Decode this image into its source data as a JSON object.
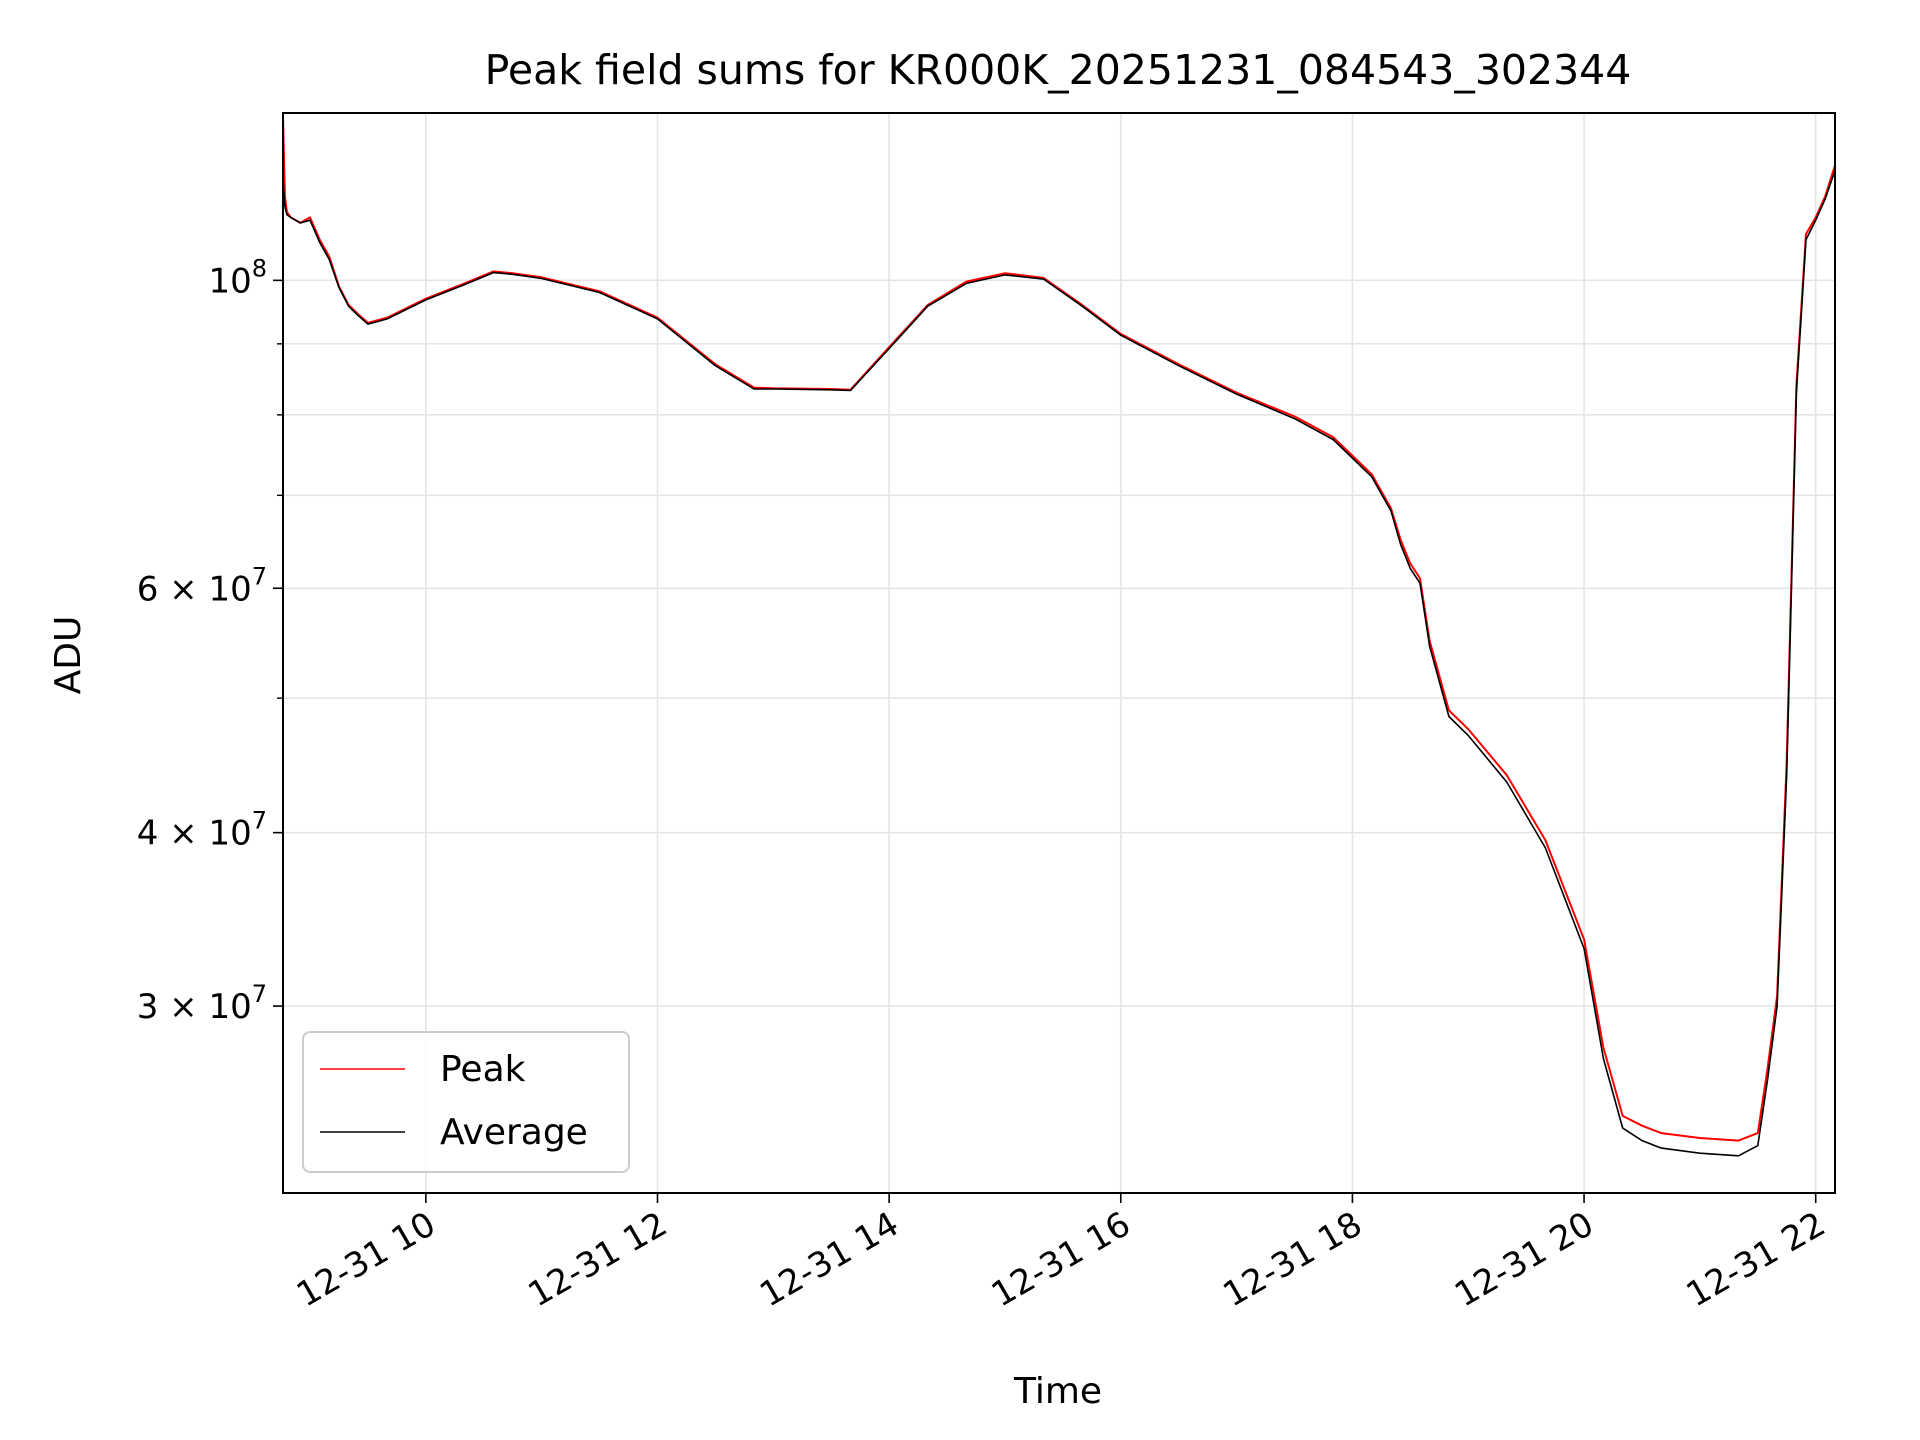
{
  "chart_data": {
    "type": "line",
    "title": "Peak field sums for KR000K_20251231_084543_302344",
    "xlabel": "Time",
    "ylabel": "ADU",
    "y_scale": "log",
    "xlim": [
      "12-31 08:46",
      "12-31 22:10"
    ],
    "ylim": [
      22000000,
      132000000
    ],
    "grid": true,
    "legend_position": "lower-left",
    "x_ticks": [
      {
        "x": "12-31 10:00",
        "label": "12-31 10"
      },
      {
        "x": "12-31 12:00",
        "label": "12-31 12"
      },
      {
        "x": "12-31 14:00",
        "label": "12-31 14"
      },
      {
        "x": "12-31 16:00",
        "label": "12-31 16"
      },
      {
        "x": "12-31 18:00",
        "label": "12-31 18"
      },
      {
        "x": "12-31 20:00",
        "label": "12-31 20"
      },
      {
        "x": "12-31 22:00",
        "label": "12-31 22"
      }
    ],
    "y_major_ticks": [
      {
        "y": 30000000,
        "base": "3 × 10",
        "exp": "7"
      },
      {
        "y": 40000000,
        "base": "4 × 10",
        "exp": "7"
      },
      {
        "y": 60000000,
        "base": "6 × 10",
        "exp": "7"
      },
      {
        "y": 100000000,
        "base": "10",
        "exp": "8"
      }
    ],
    "y_minor_ticks": [
      50000000,
      70000000,
      80000000,
      90000000
    ],
    "series": [
      {
        "name": "Peak",
        "color": "#ff0000",
        "x": [
          "12-31 08:46",
          "12-31 08:47",
          "12-31 08:48",
          "12-31 08:50",
          "12-31 08:55",
          "12-31 09:00",
          "12-31 09:05",
          "12-31 09:10",
          "12-31 09:15",
          "12-31 09:20",
          "12-31 09:25",
          "12-31 09:30",
          "12-31 09:40",
          "12-31 10:00",
          "12-31 10:20",
          "12-31 10:35",
          "12-31 10:45",
          "12-31 11:00",
          "12-31 11:30",
          "12-31 12:00",
          "12-31 12:30",
          "12-31 12:50",
          "12-31 13:00",
          "12-31 13:30",
          "12-31 13:40",
          "12-31 14:00",
          "12-31 14:20",
          "12-31 14:40",
          "12-31 15:00",
          "12-31 15:20",
          "12-31 15:40",
          "12-31 16:00",
          "12-31 16:30",
          "12-31 17:00",
          "12-31 17:30",
          "12-31 17:50",
          "12-31 18:10",
          "12-31 18:20",
          "12-31 18:25",
          "12-31 18:30",
          "12-31 18:35",
          "12-31 18:40",
          "12-31 18:50",
          "12-31 19:00",
          "12-31 19:20",
          "12-31 19:40",
          "12-31 20:00",
          "12-31 20:10",
          "12-31 20:20",
          "12-31 20:30",
          "12-31 20:40",
          "12-31 21:00",
          "12-31 21:20",
          "12-31 21:30",
          "12-31 21:35",
          "12-31 21:40",
          "12-31 21:45",
          "12-31 21:50",
          "12-31 21:55",
          "12-31 22:00",
          "12-31 22:05",
          "12-31 22:10"
        ],
        "y": [
          131000000,
          115000000,
          112000000,
          111000000,
          110000000,
          111000000,
          107000000,
          104000000,
          99000000,
          96000000,
          94500000,
          93200000,
          94000000,
          97000000,
          99500000,
          101500000,
          101200000,
          100500000,
          98200000,
          94000000,
          87000000,
          83700000,
          83600000,
          83500000,
          83400000,
          89500000,
          96000000,
          99800000,
          101200000,
          100400000,
          96000000,
          91500000,
          87000000,
          83000000,
          79800000,
          77100000,
          72500000,
          68500000,
          65000000,
          62500000,
          61000000,
          55000000,
          49000000,
          47500000,
          44000000,
          39500000,
          33500000,
          28000000,
          25000000,
          24600000,
          24300000,
          24100000,
          24000000,
          24300000,
          27000000,
          30500000,
          45000000,
          84000000,
          108000000,
          111000000,
          115000000,
          121000000
        ]
      },
      {
        "name": "Average",
        "color": "#000000",
        "x": [
          "12-31 08:46",
          "12-31 08:47",
          "12-31 08:48",
          "12-31 08:50",
          "12-31 08:55",
          "12-31 09:00",
          "12-31 09:05",
          "12-31 09:10",
          "12-31 09:15",
          "12-31 09:20",
          "12-31 09:25",
          "12-31 09:30",
          "12-31 09:40",
          "12-31 10:00",
          "12-31 10:20",
          "12-31 10:35",
          "12-31 10:45",
          "12-31 11:00",
          "12-31 11:30",
          "12-31 12:00",
          "12-31 12:30",
          "12-31 12:50",
          "12-31 13:00",
          "12-31 13:30",
          "12-31 13:40",
          "12-31 14:00",
          "12-31 14:20",
          "12-31 14:40",
          "12-31 15:00",
          "12-31 15:20",
          "12-31 15:40",
          "12-31 16:00",
          "12-31 16:30",
          "12-31 17:00",
          "12-31 17:30",
          "12-31 17:50",
          "12-31 18:10",
          "12-31 18:20",
          "12-31 18:25",
          "12-31 18:30",
          "12-31 18:35",
          "12-31 18:40",
          "12-31 18:50",
          "12-31 19:00",
          "12-31 19:20",
          "12-31 19:40",
          "12-31 20:00",
          "12-31 20:10",
          "12-31 20:20",
          "12-31 20:30",
          "12-31 20:40",
          "12-31 21:00",
          "12-31 21:20",
          "12-31 21:30",
          "12-31 21:35",
          "12-31 21:40",
          "12-31 21:45",
          "12-31 21:50",
          "12-31 21:55",
          "12-31 22:00",
          "12-31 22:05",
          "12-31 22:10"
        ],
        "y": [
          118000000,
          113000000,
          111500000,
          111000000,
          110000000,
          110500000,
          106500000,
          103500000,
          98800000,
          95800000,
          94300000,
          93000000,
          93800000,
          96800000,
          99300000,
          101300000,
          101000000,
          100300000,
          98000000,
          93800000,
          86800000,
          83500000,
          83500000,
          83400000,
          83300000,
          89300000,
          95800000,
          99500000,
          100900000,
          100200000,
          95800000,
          91300000,
          86800000,
          82800000,
          79500000,
          76800000,
          72200000,
          68200000,
          64500000,
          62000000,
          60500000,
          54500000,
          48500000,
          47000000,
          43500000,
          39000000,
          33000000,
          27500000,
          24500000,
          24000000,
          23700000,
          23500000,
          23400000,
          23800000,
          26500000,
          30000000,
          44000000,
          83000000,
          107000000,
          110500000,
          114500000,
          120000000
        ]
      }
    ]
  }
}
